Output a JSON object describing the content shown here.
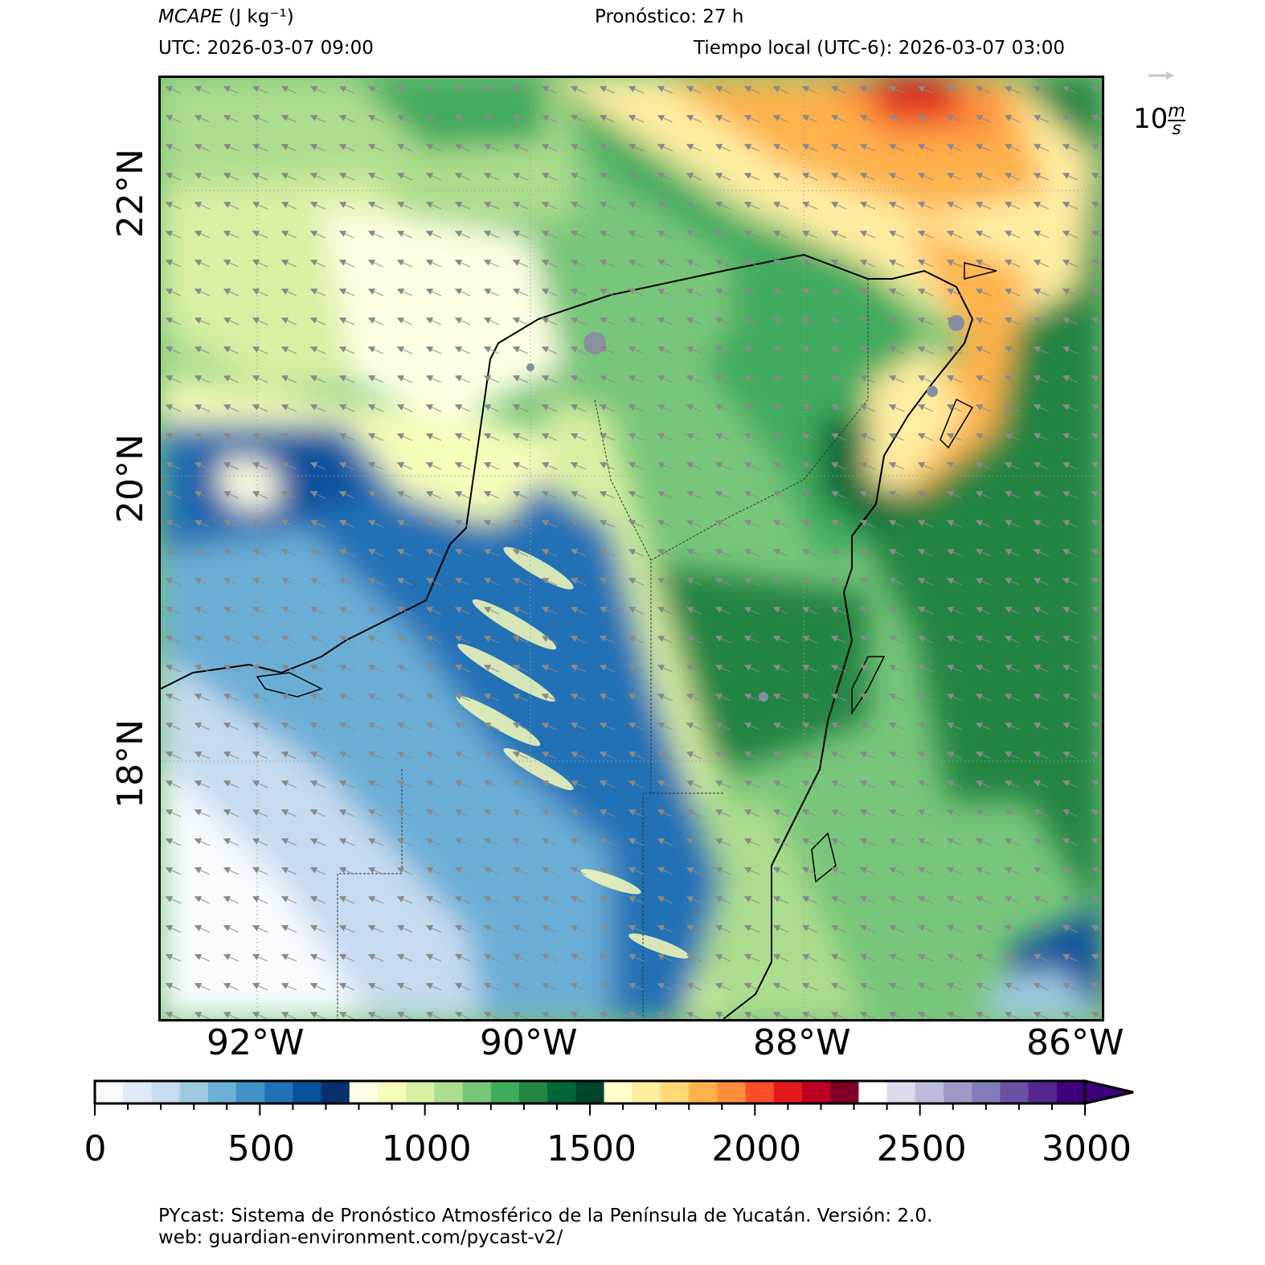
{
  "header": {
    "variable_name": "MCAPE",
    "variable_unit": "(J kg⁻¹)",
    "forecast": "Pronóstico: 27 h",
    "utc_label": "UTC:  2026-03-07 09:00",
    "local_label": "Tiempo local (UTC-6): 2026-03-07 03:00"
  },
  "wind_reference": {
    "value_label": "10",
    "unit_num": "m",
    "unit_den": "s"
  },
  "axes": {
    "lat_labels": [
      "22°N",
      "20°N",
      "18°N"
    ],
    "lon_labels": [
      "92°W",
      "90°W",
      "88°W",
      "86°W"
    ]
  },
  "colorbar": {
    "tick_labels": [
      "0",
      "500",
      "1000",
      "1500",
      "2000",
      "2500",
      "3000"
    ],
    "extend": "max",
    "colors": [
      "#f7fbff",
      "#deebf7",
      "#c6dbef",
      "#9ecae1",
      "#6baed6",
      "#4292c6",
      "#2171b5",
      "#08519c",
      "#08306b",
      "#ffffe5",
      "#f7fcb9",
      "#d9f0a3",
      "#addd8e",
      "#78c679",
      "#41ab5d",
      "#238443",
      "#006837",
      "#004529",
      "#ffffcc",
      "#ffeda0",
      "#fed976",
      "#feb24c",
      "#fd8d3c",
      "#fc4e2a",
      "#e31a1c",
      "#bd0026",
      "#800026",
      "#ffffff",
      "#dadaeb",
      "#bcbddc",
      "#9e9ac8",
      "#807dba",
      "#6a51a3",
      "#54278f",
      "#3f007d"
    ]
  },
  "footer": {
    "line1": "PYcast: Sistema de Pronóstico Atmosférico de la Península de Yucatán. Versión: 2.0.",
    "line2": "web: guardian-environment.com/pycast-v2/"
  }
}
